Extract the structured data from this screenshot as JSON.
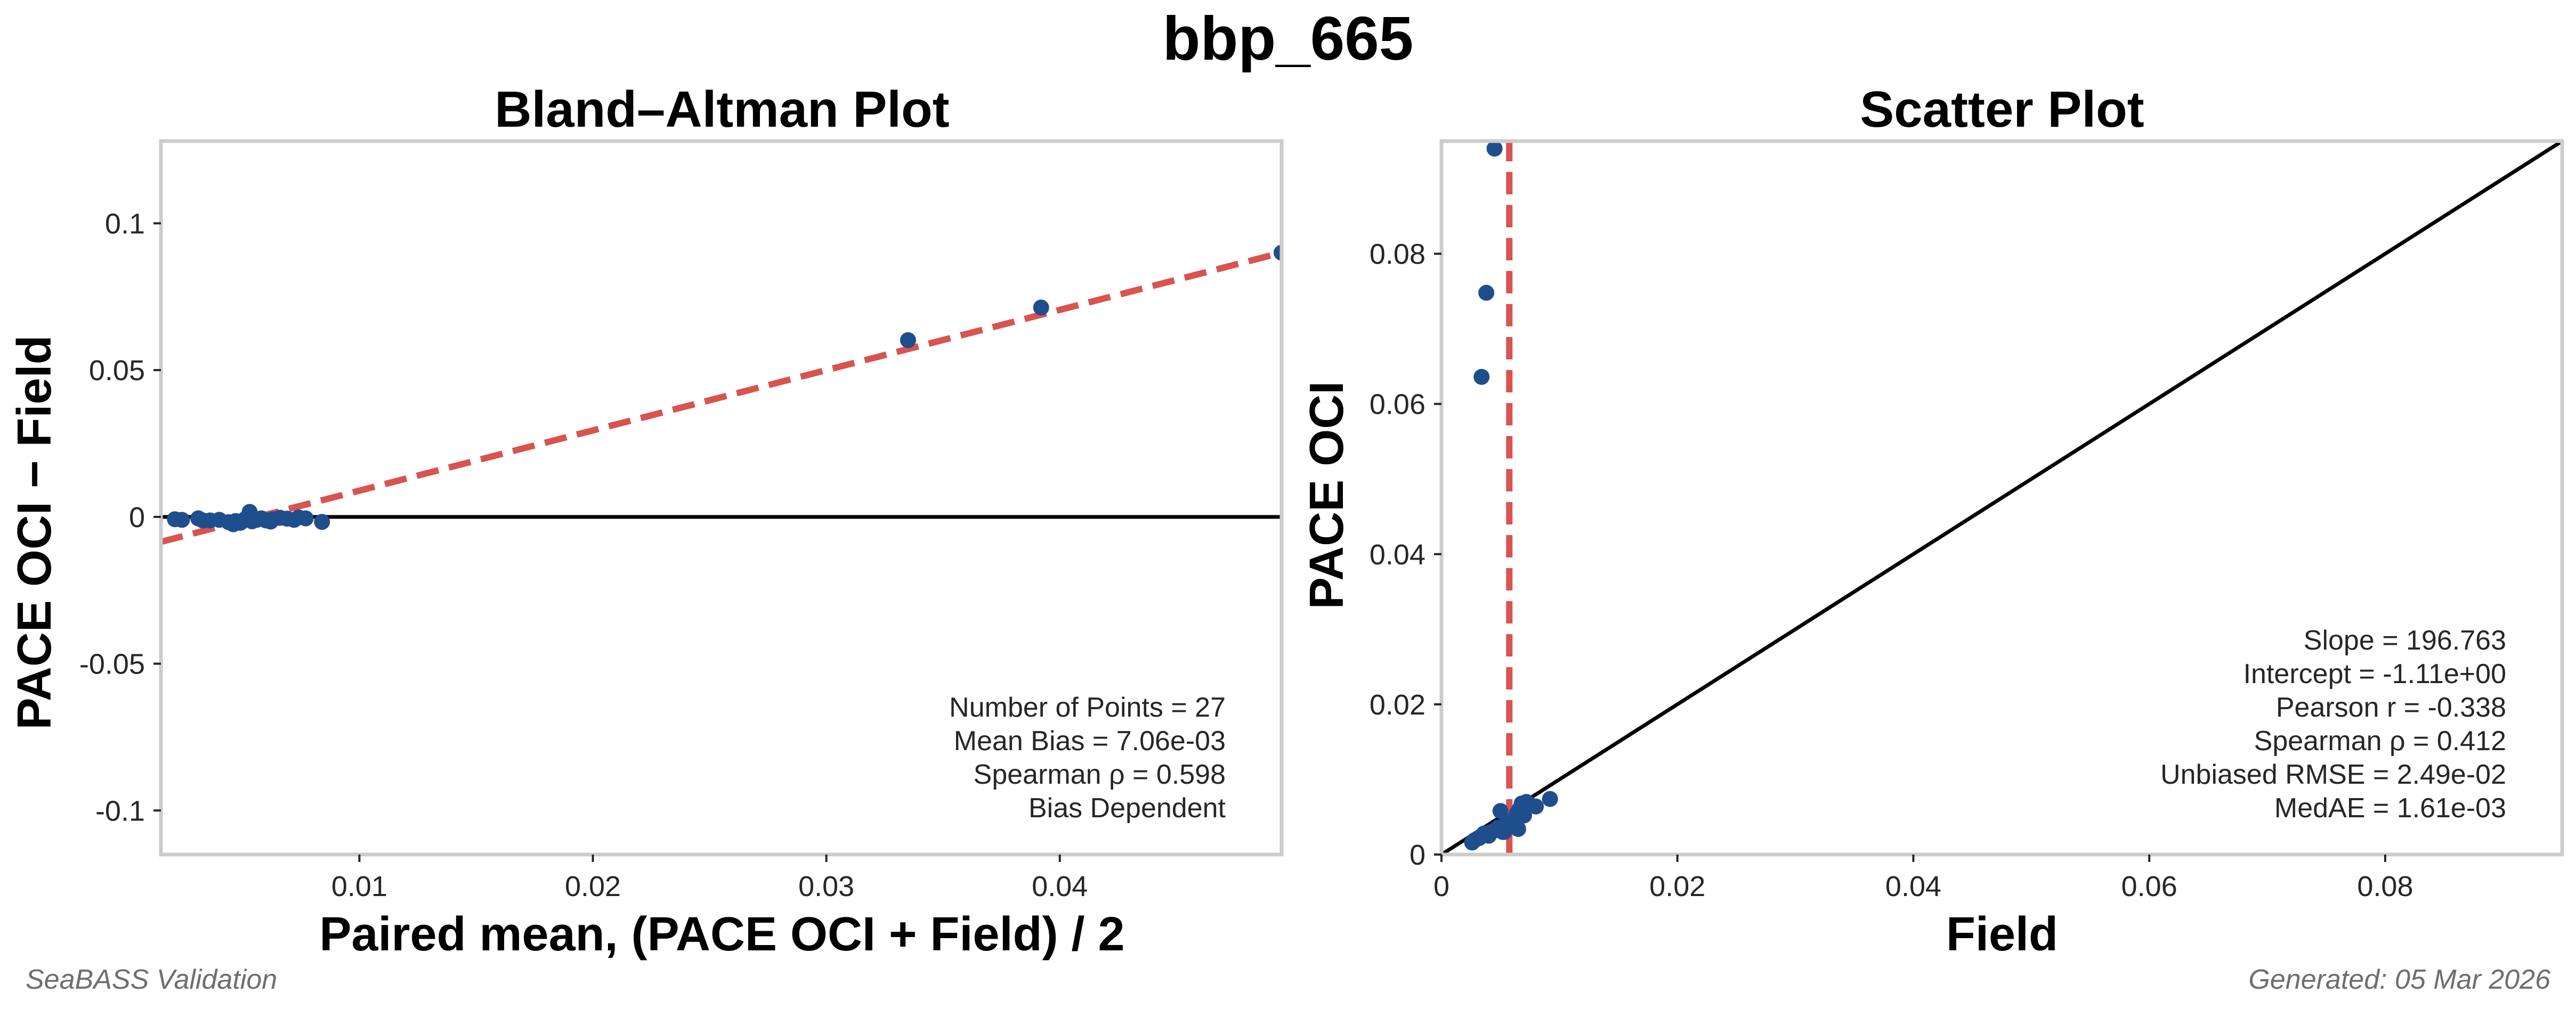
{
  "figure": {
    "suptitle": "bbp_665",
    "footer_left": "SeaBASS Validation",
    "footer_right": "Generated: 05 Mar 2026"
  },
  "colors": {
    "points": "#1f4e8c",
    "fit_line": "#d9534f",
    "reference_line": "#000000",
    "frame": "#cccccc"
  },
  "chart_data": [
    {
      "type": "scatter",
      "title": "Bland–Altman Plot",
      "xlabel": "Paired mean, (PACE OCI + Field) / 2",
      "ylabel": "PACE OCI − Field",
      "xlim": [
        0.0015,
        0.0495
      ],
      "ylim": [
        -0.115,
        0.128
      ],
      "xticks": [
        0.01,
        0.02,
        0.03,
        0.04
      ],
      "xtick_labels": [
        "0.01",
        "0.02",
        "0.03",
        "0.04"
      ],
      "yticks": [
        -0.1,
        -0.05,
        0,
        0.05,
        0.1
      ],
      "ytick_labels": [
        "-0.1",
        "-0.05",
        "0",
        "0.05",
        "0.1"
      ],
      "grid": false,
      "points": [
        {
          "x": 0.0021,
          "y": -0.0008
        },
        {
          "x": 0.0024,
          "y": -0.001
        },
        {
          "x": 0.0031,
          "y": -0.0005
        },
        {
          "x": 0.0033,
          "y": -0.0012
        },
        {
          "x": 0.0036,
          "y": -0.0012
        },
        {
          "x": 0.004,
          "y": -0.001
        },
        {
          "x": 0.0044,
          "y": -0.0018
        },
        {
          "x": 0.0046,
          "y": -0.0025
        },
        {
          "x": 0.0049,
          "y": -0.002
        },
        {
          "x": 0.0051,
          "y": -0.0008
        },
        {
          "x": 0.0053,
          "y": 0.0017
        },
        {
          "x": 0.0054,
          "y": -0.0015
        },
        {
          "x": 0.0056,
          "y": -0.001
        },
        {
          "x": 0.0058,
          "y": -0.0005
        },
        {
          "x": 0.006,
          "y": -0.0012
        },
        {
          "x": 0.0063,
          "y": -0.0008
        },
        {
          "x": 0.0066,
          "y": -0.0003
        },
        {
          "x": 0.0069,
          "y": -0.0006
        },
        {
          "x": 0.0072,
          "y": -0.001
        },
        {
          "x": 0.0074,
          "y": -0.0002
        },
        {
          "x": 0.0077,
          "y": -0.0005
        },
        {
          "x": 0.0084,
          "y": -0.0017
        },
        {
          "x": 0.0335,
          "y": 0.0602
        },
        {
          "x": 0.0392,
          "y": 0.0713
        },
        {
          "x": 0.0495,
          "y": 0.09
        },
        {
          "x": 0.0047,
          "y": -0.0014
        },
        {
          "x": 0.0062,
          "y": -0.0016
        }
      ],
      "reference_line": {
        "y": 0
      },
      "fit_line": {
        "x": [
          0.0015,
          0.0495
        ],
        "y": [
          -0.0085,
          0.09
        ]
      },
      "stats": [
        "Number of Points = 27",
        "Mean Bias = 7.06e-03",
        "Spearman ρ = 0.598",
        "Bias Dependent"
      ]
    },
    {
      "type": "scatter",
      "title": "Scatter Plot",
      "xlabel": "Field",
      "ylabel": "PACE OCI",
      "xlim": [
        0,
        0.095
      ],
      "ylim": [
        0,
        0.095
      ],
      "xticks": [
        0,
        0.02,
        0.04,
        0.06,
        0.08
      ],
      "xtick_labels": [
        "0",
        "0.02",
        "0.04",
        "0.06",
        "0.08"
      ],
      "yticks": [
        0,
        0.02,
        0.04,
        0.06,
        0.08
      ],
      "ytick_labels": [
        "0",
        "0.02",
        "0.04",
        "0.06",
        "0.08"
      ],
      "grid": false,
      "points": [
        {
          "x": 0.0026,
          "y": 0.0016
        },
        {
          "x": 0.0028,
          "y": 0.0019
        },
        {
          "x": 0.0032,
          "y": 0.0022
        },
        {
          "x": 0.0036,
          "y": 0.0028
        },
        {
          "x": 0.004,
          "y": 0.0025
        },
        {
          "x": 0.0042,
          "y": 0.003
        },
        {
          "x": 0.0045,
          "y": 0.0032
        },
        {
          "x": 0.0048,
          "y": 0.0036
        },
        {
          "x": 0.005,
          "y": 0.0058
        },
        {
          "x": 0.0053,
          "y": 0.003
        },
        {
          "x": 0.0055,
          "y": 0.004
        },
        {
          "x": 0.0058,
          "y": 0.0042
        },
        {
          "x": 0.006,
          "y": 0.0038
        },
        {
          "x": 0.0062,
          "y": 0.0048
        },
        {
          "x": 0.0064,
          "y": 0.0055
        },
        {
          "x": 0.0066,
          "y": 0.006
        },
        {
          "x": 0.0068,
          "y": 0.0068
        },
        {
          "x": 0.007,
          "y": 0.0052
        },
        {
          "x": 0.0072,
          "y": 0.007
        },
        {
          "x": 0.0075,
          "y": 0.0066
        },
        {
          "x": 0.008,
          "y": 0.0064
        },
        {
          "x": 0.0092,
          "y": 0.0074
        },
        {
          "x": 0.0065,
          "y": 0.0034
        },
        {
          "x": 0.0052,
          "y": 0.003
        },
        {
          "x": 0.0034,
          "y": 0.0636
        },
        {
          "x": 0.0038,
          "y": 0.0748
        },
        {
          "x": 0.0045,
          "y": 0.094
        }
      ],
      "reference_line": {
        "type": "one_to_one"
      },
      "fit_line": {
        "x": [
          0.00575,
          0.00575
        ],
        "y": [
          0,
          0.095
        ]
      },
      "stats": [
        "Slope = 196.763",
        "Intercept = -1.11e+00",
        "Pearson r = -0.338",
        "Spearman ρ = 0.412",
        "Unbiased RMSE = 2.49e-02",
        "MedAE = 1.61e-03"
      ]
    }
  ]
}
